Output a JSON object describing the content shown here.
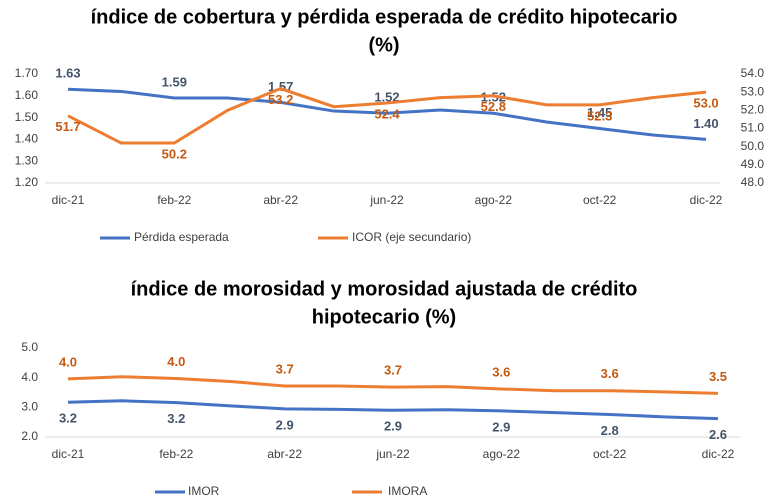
{
  "chart_data": [
    {
      "type": "line",
      "title": [
        "índice de cobertura y pérdida esperada de crédito hipotecario",
        "(%)"
      ],
      "categories": [
        "dic-21",
        null,
        "feb-22",
        null,
        "abr-22",
        null,
        "jun-22",
        null,
        "ago-22",
        null,
        "oct-22",
        null,
        "dic-22"
      ],
      "series": [
        {
          "name": "Pérdida esperada",
          "color": "#4472c4",
          "label_color": "#44546a",
          "values": [
            1.63,
            1.62,
            1.59,
            1.59,
            1.57,
            1.53,
            1.52,
            1.535,
            1.52,
            1.48,
            1.45,
            1.42,
            1.4
          ],
          "value_labels": [
            "1.63",
            null,
            "1.59",
            null,
            "1.57",
            null,
            "1.52",
            null,
            "1.52",
            null,
            "1.45",
            null,
            "1.40"
          ]
        },
        {
          "name": "ICOR (eje secundario)",
          "color": "#ed7d31",
          "label_color": "#c55a11",
          "axis": "y2",
          "values": [
            51.7,
            50.2,
            50.2,
            52.0,
            53.2,
            52.2,
            52.4,
            52.7,
            52.8,
            52.3,
            52.3,
            52.7,
            53.0
          ],
          "value_labels": [
            "51.7",
            null,
            "50.2",
            null,
            "53.2",
            null,
            "52.4",
            null,
            "52.8",
            null,
            "52.3",
            null,
            "53.0"
          ]
        }
      ],
      "ylim": [
        1.2,
        1.7
      ],
      "yticks": [
        {
          "value": 1.2,
          "label": "1.20"
        },
        {
          "value": 1.3,
          "label": "1.30"
        },
        {
          "value": 1.4,
          "label": "1.40"
        },
        {
          "value": 1.5,
          "label": "1.50"
        },
        {
          "value": 1.6,
          "label": "1.60"
        },
        {
          "value": 1.7,
          "label": "1.70"
        }
      ],
      "y2lim": [
        48,
        54
      ],
      "y2ticks": [
        {
          "value": 48,
          "label": "48.0"
        },
        {
          "value": 49,
          "label": "49.0"
        },
        {
          "value": 50,
          "label": "50.0"
        },
        {
          "value": 51,
          "label": "51.0"
        },
        {
          "value": 52,
          "label": "52.0"
        },
        {
          "value": 53,
          "label": "53.0"
        },
        {
          "value": 54,
          "label": "54.0"
        }
      ],
      "legend": "bottom"
    },
    {
      "type": "line",
      "title": [
        "índice de morosidad y morosidad ajustada de crédito",
        "hipotecario (%)"
      ],
      "categories": [
        "dic-21",
        null,
        "feb-22",
        null,
        "abr-22",
        null,
        "jun-22",
        null,
        "ago-22",
        null,
        "oct-22",
        null,
        "dic-22"
      ],
      "series": [
        {
          "name": "IMOR",
          "color": "#4472c4",
          "label_color": "#44546a",
          "values": [
            3.17,
            3.22,
            3.16,
            3.05,
            2.95,
            2.93,
            2.9,
            2.92,
            2.88,
            2.82,
            2.76,
            2.68,
            2.62
          ],
          "value_labels": [
            "3.2",
            null,
            "3.2",
            null,
            "2.9",
            null,
            "2.9",
            null,
            "2.9",
            null,
            "2.8",
            null,
            "2.6"
          ]
        },
        {
          "name": "IMORA",
          "color": "#ed7d31",
          "label_color": "#c55a11",
          "values": [
            3.96,
            4.03,
            3.97,
            3.87,
            3.72,
            3.72,
            3.68,
            3.7,
            3.62,
            3.56,
            3.56,
            3.52,
            3.47
          ],
          "value_labels": [
            "4.0",
            null,
            "4.0",
            null,
            "3.7",
            null,
            "3.7",
            null,
            "3.6",
            null,
            "3.6",
            null,
            "3.5"
          ]
        }
      ],
      "ylim": [
        2,
        5
      ],
      "yticks": [
        {
          "value": 2,
          "label": "2.0"
        },
        {
          "value": 3,
          "label": "3.0"
        },
        {
          "value": 4,
          "label": "4.0"
        },
        {
          "value": 5,
          "label": "5.0"
        }
      ],
      "legend": "bottom"
    }
  ]
}
